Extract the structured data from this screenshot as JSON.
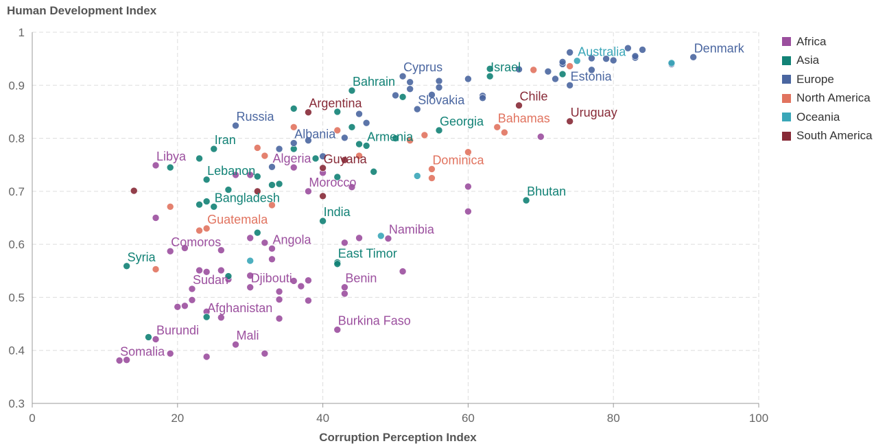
{
  "chart_data": {
    "type": "scatter",
    "title": "",
    "xlabel": "Corruption Perception Index",
    "ylabel": "Human Development Index",
    "xlim": [
      0,
      100
    ],
    "ylim": [
      0.3,
      1
    ],
    "x_ticks": [
      "0",
      "20",
      "40",
      "60",
      "80",
      "100"
    ],
    "y_ticks": [
      "0.3",
      "0.4",
      "0.5",
      "0.6",
      "0.7",
      "0.8",
      "0.9",
      "1"
    ],
    "grid": true,
    "legend_position": "right",
    "series": [
      {
        "name": "Africa",
        "color": "#9b4f9e",
        "points": [
          [
            12,
            0.381
          ],
          [
            13,
            0.382
          ],
          [
            17,
            0.421
          ],
          [
            19,
            0.394
          ],
          [
            24,
            0.388
          ],
          [
            28,
            0.411
          ],
          [
            32,
            0.394
          ],
          [
            20,
            0.482
          ],
          [
            21,
            0.484
          ],
          [
            22,
            0.495
          ],
          [
            26,
            0.462
          ],
          [
            24,
            0.473
          ],
          [
            22,
            0.516
          ],
          [
            23,
            0.551
          ],
          [
            24,
            0.548
          ],
          [
            26,
            0.551
          ],
          [
            27,
            0.534
          ],
          [
            30,
            0.519
          ],
          [
            30,
            0.541
          ],
          [
            33,
            0.572
          ],
          [
            34,
            0.511
          ],
          [
            34,
            0.496
          ],
          [
            34,
            0.46
          ],
          [
            37,
            0.521
          ],
          [
            38,
            0.532
          ],
          [
            38,
            0.494
          ],
          [
            36,
            0.531
          ],
          [
            43,
            0.507
          ],
          [
            43,
            0.519
          ],
          [
            42,
            0.439
          ],
          [
            21,
            0.593
          ],
          [
            19,
            0.587
          ],
          [
            26,
            0.589
          ],
          [
            30,
            0.612
          ],
          [
            32,
            0.603
          ],
          [
            33,
            0.592
          ],
          [
            43,
            0.603
          ],
          [
            45,
            0.612
          ],
          [
            49,
            0.611
          ],
          [
            51,
            0.549
          ],
          [
            17,
            0.65
          ],
          [
            17,
            0.749
          ],
          [
            28,
            0.731
          ],
          [
            30,
            0.731
          ],
          [
            36,
            0.745
          ],
          [
            40,
            0.735
          ],
          [
            44,
            0.708
          ],
          [
            38,
            0.7
          ],
          [
            60,
            0.709
          ],
          [
            60,
            0.662
          ],
          [
            70,
            0.803
          ]
        ],
        "labels": [
          {
            "text": "Somalia",
            "x": 12,
            "y": 0.381
          },
          {
            "text": "Burundi",
            "x": 17,
            "y": 0.421
          },
          {
            "text": "Mali",
            "x": 28,
            "y": 0.411
          },
          {
            "text": "Afghanistan",
            "x": 24,
            "y": 0.463
          },
          {
            "text": "Sudan",
            "x": 22,
            "y": 0.516
          },
          {
            "text": "Djibouti",
            "x": 30,
            "y": 0.519
          },
          {
            "text": "Comoros",
            "x": 19,
            "y": 0.587
          },
          {
            "text": "Angola",
            "x": 33,
            "y": 0.592
          },
          {
            "text": "Benin",
            "x": 43,
            "y": 0.519
          },
          {
            "text": "Burkina Faso",
            "x": 42,
            "y": 0.439
          },
          {
            "text": "Namibia",
            "x": 49,
            "y": 0.611
          },
          {
            "text": "Morocco",
            "x": 38,
            "y": 0.7
          },
          {
            "text": "Algeria",
            "x": 33,
            "y": 0.745
          },
          {
            "text": "Libya",
            "x": 17,
            "y": 0.749
          }
        ]
      },
      {
        "name": "Asia",
        "color": "#128276",
        "points": [
          [
            13,
            0.559
          ],
          [
            16,
            0.425
          ],
          [
            19,
            0.745
          ],
          [
            23,
            0.762
          ],
          [
            23,
            0.675
          ],
          [
            24,
            0.722
          ],
          [
            24,
            0.681
          ],
          [
            24,
            0.463
          ],
          [
            25,
            0.671
          ],
          [
            25,
            0.78
          ],
          [
            27,
            0.703
          ],
          [
            27,
            0.54
          ],
          [
            31,
            0.728
          ],
          [
            31,
            0.622
          ],
          [
            33,
            0.712
          ],
          [
            34,
            0.714
          ],
          [
            36,
            0.856
          ],
          [
            36,
            0.78
          ],
          [
            39,
            0.762
          ],
          [
            40,
            0.644
          ],
          [
            42,
            0.727
          ],
          [
            42,
            0.566
          ],
          [
            42,
            0.85
          ],
          [
            44,
            0.89
          ],
          [
            44,
            0.821
          ],
          [
            45,
            0.789
          ],
          [
            46,
            0.786
          ],
          [
            47,
            0.737
          ],
          [
            50,
            0.8
          ],
          [
            51,
            0.878
          ],
          [
            56,
            0.815
          ],
          [
            63,
            0.917
          ],
          [
            63,
            0.931
          ],
          [
            68,
            0.683
          ],
          [
            73,
            0.921
          ],
          [
            42,
            0.563
          ]
        ],
        "labels": [
          {
            "text": "Syria",
            "x": 13,
            "y": 0.559
          },
          {
            "text": "Bangladesh",
            "x": 25,
            "y": 0.671
          },
          {
            "text": "Lebanon",
            "x": 24,
            "y": 0.722
          },
          {
            "text": "Iran",
            "x": 25,
            "y": 0.78
          },
          {
            "text": "India",
            "x": 40,
            "y": 0.644
          },
          {
            "text": "East Timor",
            "x": 42,
            "y": 0.566
          },
          {
            "text": "Bahrain",
            "x": 44,
            "y": 0.89
          },
          {
            "text": "Armenia",
            "x": 46,
            "y": 0.786
          },
          {
            "text": "Georgia",
            "x": 56,
            "y": 0.815
          },
          {
            "text": "Israel",
            "x": 63,
            "y": 0.917
          },
          {
            "text": "Bhutan",
            "x": 68,
            "y": 0.683
          }
        ]
      },
      {
        "name": "Europe",
        "color": "#4a66a0",
        "points": [
          [
            28,
            0.824
          ],
          [
            33,
            0.746
          ],
          [
            34,
            0.78
          ],
          [
            36,
            0.791
          ],
          [
            38,
            0.796
          ],
          [
            40,
            0.766
          ],
          [
            43,
            0.801
          ],
          [
            45,
            0.846
          ],
          [
            46,
            0.829
          ],
          [
            50,
            0.881
          ],
          [
            51,
            0.917
          ],
          [
            52,
            0.893
          ],
          [
            52,
            0.906
          ],
          [
            53,
            0.855
          ],
          [
            55,
            0.882
          ],
          [
            56,
            0.908
          ],
          [
            56,
            0.896
          ],
          [
            60,
            0.912
          ],
          [
            62,
            0.88
          ],
          [
            62,
            0.876
          ],
          [
            67,
            0.93
          ],
          [
            71,
            0.926
          ],
          [
            72,
            0.912
          ],
          [
            73,
            0.94
          ],
          [
            73,
            0.944
          ],
          [
            74,
            0.9
          ],
          [
            74,
            0.962
          ],
          [
            77,
            0.929
          ],
          [
            77,
            0.951
          ],
          [
            79,
            0.95
          ],
          [
            80,
            0.947
          ],
          [
            82,
            0.97
          ],
          [
            83,
            0.952
          ],
          [
            83,
            0.955
          ],
          [
            84,
            0.967
          ],
          [
            88,
            0.94
          ],
          [
            91,
            0.953
          ]
        ],
        "labels": [
          {
            "text": "Russia",
            "x": 28,
            "y": 0.824
          },
          {
            "text": "Albania",
            "x": 36,
            "y": 0.791
          },
          {
            "text": "Slovakia",
            "x": 53,
            "y": 0.855
          },
          {
            "text": "Cyprus",
            "x": 51,
            "y": 0.917
          },
          {
            "text": "Estonia",
            "x": 74,
            "y": 0.9
          },
          {
            "text": "Denmark",
            "x": 91,
            "y": 0.953
          }
        ]
      },
      {
        "name": "North America",
        "color": "#e1735f",
        "points": [
          [
            17,
            0.553
          ],
          [
            19,
            0.671
          ],
          [
            23,
            0.626
          ],
          [
            24,
            0.63
          ],
          [
            31,
            0.782
          ],
          [
            32,
            0.767
          ],
          [
            33,
            0.674
          ],
          [
            36,
            0.821
          ],
          [
            42,
            0.815
          ],
          [
            45,
            0.767
          ],
          [
            52,
            0.796
          ],
          [
            54,
            0.806
          ],
          [
            55,
            0.742
          ],
          [
            55,
            0.725
          ],
          [
            60,
            0.774
          ],
          [
            64,
            0.821
          ],
          [
            65,
            0.811
          ],
          [
            69,
            0.929
          ],
          [
            74,
            0.936
          ]
        ],
        "labels": [
          {
            "text": "Guatemala",
            "x": 24,
            "y": 0.63
          },
          {
            "text": "Dominica",
            "x": 55,
            "y": 0.742
          },
          {
            "text": "Bahamas",
            "x": 64,
            "y": 0.821
          }
        ]
      },
      {
        "name": "Oceania",
        "color": "#3aa6b8",
        "points": [
          [
            30,
            0.569
          ],
          [
            48,
            0.616
          ],
          [
            53,
            0.729
          ],
          [
            75,
            0.946
          ],
          [
            88,
            0.942
          ]
        ],
        "labels": [
          {
            "text": "Australia",
            "x": 75,
            "y": 0.946
          }
        ]
      },
      {
        "name": "South America",
        "color": "#872a37",
        "points": [
          [
            14,
            0.701
          ],
          [
            31,
            0.7
          ],
          [
            38,
            0.849
          ],
          [
            40,
            0.744
          ],
          [
            40,
            0.691
          ],
          [
            43,
            0.759
          ],
          [
            67,
            0.862
          ],
          [
            74,
            0.832
          ]
        ],
        "labels": [
          {
            "text": "Argentina",
            "x": 38,
            "y": 0.849
          },
          {
            "text": "Guyana",
            "x": 40,
            "y": 0.744
          },
          {
            "text": "Chile",
            "x": 67,
            "y": 0.862
          },
          {
            "text": "Uruguay",
            "x": 74,
            "y": 0.832
          }
        ]
      }
    ]
  }
}
